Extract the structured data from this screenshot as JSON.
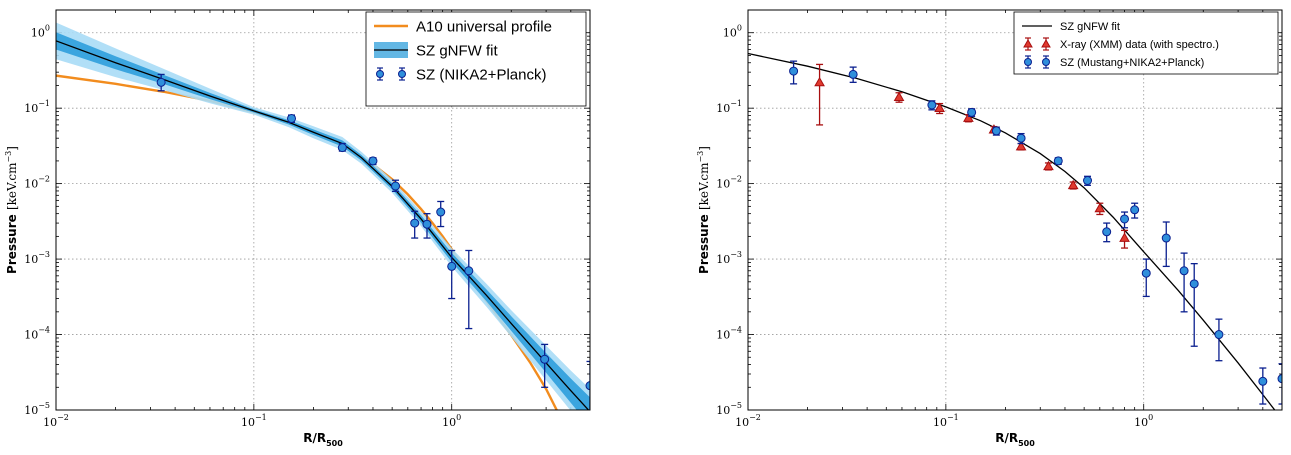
{
  "chart_data": [
    {
      "type": "line",
      "xscale": "log",
      "yscale": "log",
      "xlim": [
        0.01,
        5
      ],
      "ylim": [
        1e-05,
        2
      ],
      "xlabel": "R/R",
      "xlabel_sub": "500",
      "ylabel": "Pressure",
      "ylabel_units": "[keV.cm",
      "ylabel_units_sup": "−3",
      "ylabel_units_end": "]",
      "grid": true,
      "legend_position": "top-right",
      "x_ticks": [
        {
          "value": 0.01,
          "base": "10",
          "exp": "−2"
        },
        {
          "value": 0.1,
          "base": "10",
          "exp": "−1"
        },
        {
          "value": 1,
          "base": "10",
          "exp": "0"
        }
      ],
      "y_ticks": [
        {
          "value": 1,
          "base": "10",
          "exp": "0"
        },
        {
          "value": 0.1,
          "base": "10",
          "exp": "−1"
        },
        {
          "value": 0.01,
          "base": "10",
          "exp": "−2"
        },
        {
          "value": 0.001,
          "base": "10",
          "exp": "−3"
        },
        {
          "value": 0.0001,
          "base": "10",
          "exp": "−4"
        },
        {
          "value": 1e-05,
          "base": "10",
          "exp": "−5"
        }
      ],
      "series": [
        {
          "name": "A10 universal profile",
          "kind": "line",
          "color": "#f28c1e",
          "x": [
            0.01,
            0.02,
            0.035,
            0.06,
            0.1,
            0.15,
            0.2,
            0.3,
            0.4,
            0.5,
            0.6,
            0.7,
            0.8,
            0.9,
            1.0,
            1.2,
            1.5,
            2.0,
            2.5,
            3.0,
            3.5,
            4.0
          ],
          "y": [
            0.27,
            0.21,
            0.165,
            0.125,
            0.088,
            0.064,
            0.048,
            0.029,
            0.018,
            0.0114,
            0.0072,
            0.0046,
            0.003,
            0.002,
            0.00135,
            0.00064,
            0.000275,
            9.8e-05,
            4.2e-05,
            1.9e-05,
            8.5e-06,
            4e-06
          ]
        },
        {
          "name": "SZ gNFW fit",
          "kind": "band",
          "line_color": "#000000",
          "band_inner_color": "#2f9fdb",
          "band_outer_color": "#a9dcf6",
          "x": [
            0.01,
            0.02,
            0.035,
            0.06,
            0.1,
            0.15,
            0.2,
            0.28,
            0.35,
            0.5,
            0.7,
            1.0,
            1.5,
            2.0,
            3.0,
            4.0,
            5.0
          ],
          "y": [
            0.78,
            0.4,
            0.24,
            0.145,
            0.092,
            0.065,
            0.048,
            0.034,
            0.022,
            0.0092,
            0.0034,
            0.00105,
            0.00033,
            0.00014,
            4.2e-05,
            1.8e-05,
            9.5e-06
          ],
          "inner_factor": [
            1.3,
            1.22,
            1.15,
            1.1,
            1.05,
            1.07,
            1.09,
            1.1,
            1.09,
            1.1,
            1.12,
            1.15,
            1.2,
            1.25,
            1.35,
            1.45,
            1.55
          ],
          "outer_factor": [
            1.75,
            1.55,
            1.38,
            1.25,
            1.12,
            1.16,
            1.2,
            1.22,
            1.2,
            1.22,
            1.25,
            1.32,
            1.42,
            1.5,
            1.7,
            1.85,
            2.0
          ]
        },
        {
          "name": "SZ (NIKA2+Planck)",
          "kind": "errorbar",
          "marker": "circle",
          "fill": "#2f8fdb",
          "edge": "#0a1f8f",
          "x": [
            0.034,
            0.155,
            0.28,
            0.4,
            0.52,
            0.65,
            0.75,
            0.88,
            1.0,
            1.22,
            2.95,
            5.0
          ],
          "y": [
            0.22,
            0.073,
            0.03,
            0.02,
            0.0093,
            0.003,
            0.0029,
            0.0042,
            0.0008,
            0.0007,
            4.7e-05,
            2.1e-05
          ],
          "yerr_low": [
            0.05,
            0.008,
            0.003,
            0.002,
            0.0014,
            0.0011,
            0.001,
            0.0015,
            0.0005,
            0.00058,
            2.7e-05,
            1.65e-05
          ],
          "yerr_high": [
            0.06,
            0.008,
            0.004,
            0.002,
            0.0018,
            0.0013,
            0.0011,
            0.0016,
            0.0005,
            0.0006,
            2.7e-05,
            2.3e-05
          ]
        }
      ]
    },
    {
      "type": "line",
      "xscale": "log",
      "yscale": "log",
      "xlim": [
        0.01,
        5
      ],
      "ylim": [
        1e-05,
        2
      ],
      "xlabel": "R/R",
      "xlabel_sub": "500",
      "ylabel": "Pressure",
      "ylabel_units": "[keV.cm",
      "ylabel_units_sup": "−3",
      "ylabel_units_end": "]",
      "grid": true,
      "legend_position": "top-right",
      "x_ticks": [
        {
          "value": 0.01,
          "base": "10",
          "exp": "−2"
        },
        {
          "value": 0.1,
          "base": "10",
          "exp": "−1"
        },
        {
          "value": 1,
          "base": "10",
          "exp": "0"
        }
      ],
      "y_ticks": [
        {
          "value": 1,
          "base": "10",
          "exp": "0"
        },
        {
          "value": 0.1,
          "base": "10",
          "exp": "−1"
        },
        {
          "value": 0.01,
          "base": "10",
          "exp": "−2"
        },
        {
          "value": 0.001,
          "base": "10",
          "exp": "−3"
        },
        {
          "value": 0.0001,
          "base": "10",
          "exp": "−4"
        },
        {
          "value": 1e-05,
          "base": "10",
          "exp": "−5"
        }
      ],
      "series": [
        {
          "name": "SZ gNFW fit",
          "kind": "line",
          "color": "#000000",
          "x": [
            0.01,
            0.02,
            0.035,
            0.06,
            0.1,
            0.15,
            0.2,
            0.3,
            0.4,
            0.5,
            0.7,
            1.0,
            1.5,
            2.0,
            3.0,
            4.0,
            5.0
          ],
          "y": [
            0.53,
            0.36,
            0.25,
            0.165,
            0.104,
            0.068,
            0.047,
            0.025,
            0.0145,
            0.0088,
            0.0036,
            0.00125,
            0.00038,
            0.000155,
            4.2e-05,
            1.6e-05,
            7.5e-06
          ]
        },
        {
          "name": "X-ray (XMM) data (with spectro.)",
          "kind": "errorbar",
          "marker": "triangle",
          "fill": "#e03a2f",
          "edge": "#a80f10",
          "x": [
            0.023,
            0.058,
            0.093,
            0.13,
            0.175,
            0.24,
            0.33,
            0.44,
            0.6,
            0.8
          ],
          "y": [
            0.22,
            0.14,
            0.1,
            0.074,
            0.052,
            0.031,
            0.017,
            0.0095,
            0.0047,
            0.0019
          ],
          "yerr_low": [
            0.16,
            0.02,
            0.015,
            0.008,
            0.005,
            0.003,
            0.0018,
            0.001,
            0.0008,
            0.0005
          ],
          "yerr_high": [
            0.16,
            0.02,
            0.015,
            0.008,
            0.005,
            0.003,
            0.0018,
            0.001,
            0.0008,
            0.0005
          ]
        },
        {
          "name": "SZ (Mustang+NIKA2+Planck)",
          "kind": "errorbar",
          "marker": "circle",
          "fill": "#2f8fdb",
          "edge": "#0a1f8f",
          "x": [
            0.017,
            0.034,
            0.085,
            0.135,
            0.18,
            0.24,
            0.37,
            0.52,
            0.65,
            0.8,
            0.9,
            1.03,
            1.3,
            1.6,
            1.8,
            2.4,
            4.0,
            5.0
          ],
          "y": [
            0.31,
            0.28,
            0.11,
            0.088,
            0.05,
            0.04,
            0.02,
            0.011,
            0.0023,
            0.0034,
            0.0045,
            0.00065,
            0.0019,
            0.0007,
            0.00047,
            0.0001,
            2.4e-05,
            2.6e-05
          ],
          "yerr_low": [
            0.1,
            0.06,
            0.015,
            0.01,
            0.006,
            0.006,
            0.002,
            0.0015,
            0.0006,
            0.0008,
            0.001,
            0.00033,
            0.0011,
            0.0005,
            0.0004,
            5.5e-05,
            1.2e-05,
            1.4e-05
          ],
          "yerr_high": [
            0.11,
            0.07,
            0.015,
            0.01,
            0.006,
            0.006,
            0.002,
            0.0015,
            0.0007,
            0.0008,
            0.001,
            0.00035,
            0.0012,
            0.0005,
            0.0004,
            6e-05,
            1.2e-05,
            1.5e-05
          ]
        }
      ]
    }
  ]
}
